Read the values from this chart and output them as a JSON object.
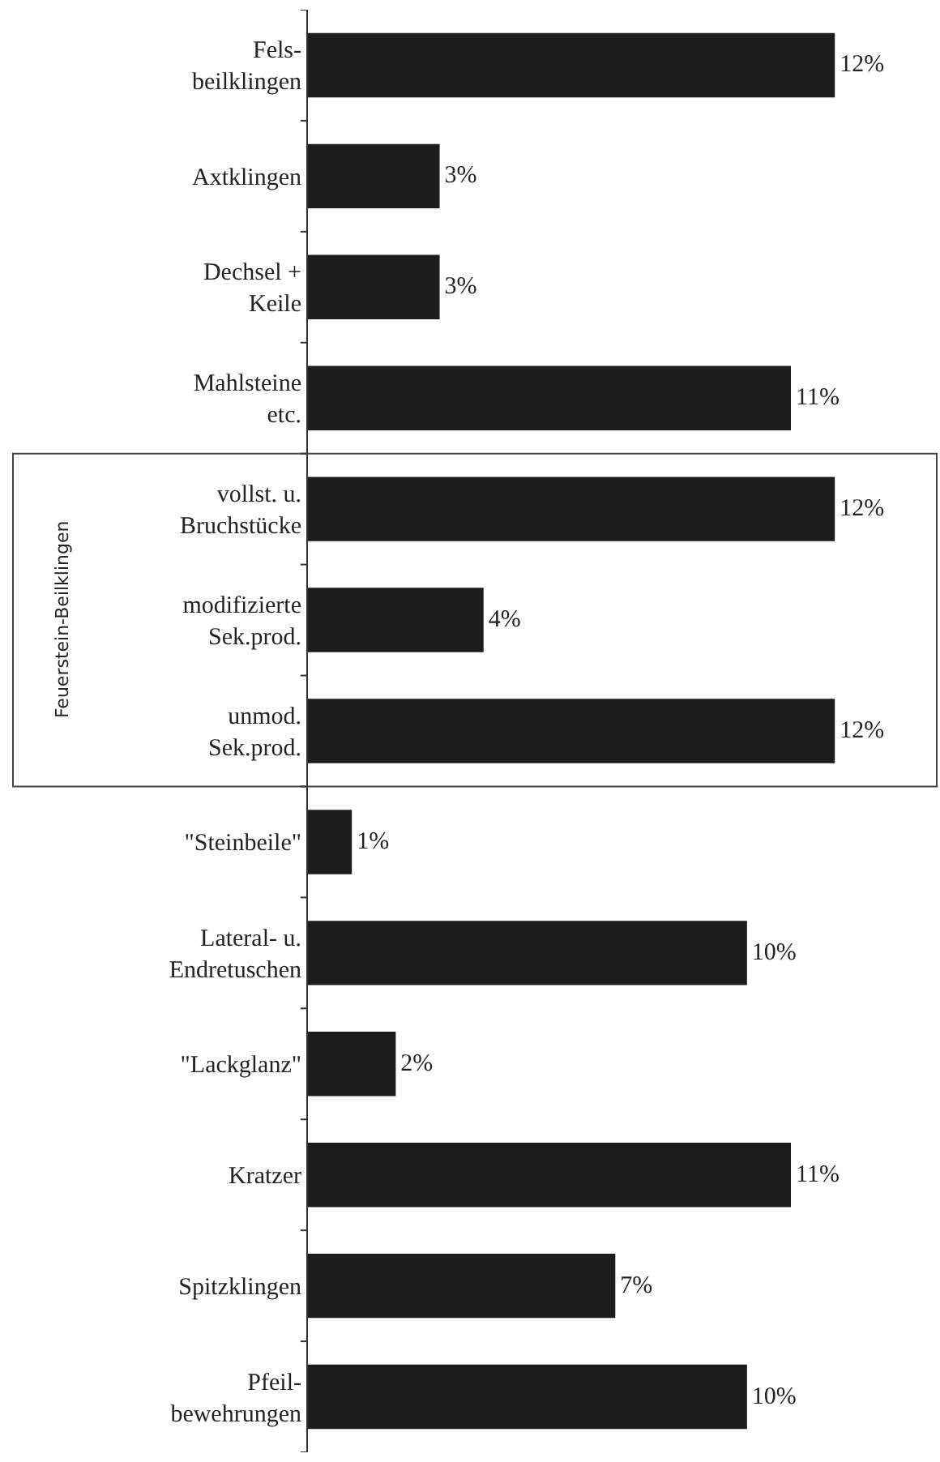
{
  "chart_data": {
    "type": "bar",
    "orientation": "horizontal",
    "categories": [
      "Fels-\nbeilklingen",
      "Axtklingen",
      "Dechsel +\nKeile",
      "Mahlsteine\netc.",
      "vollst. u.\nBruchstücke",
      "modifizierte\nSek.prod.",
      "unmod.\nSek.prod.",
      "\"Steinbeile\"",
      "Lateral- u.\nEndretuschen",
      "\"Lackglanz\"",
      "Kratzer",
      "Spitzklingen",
      "Pfeil-\nbewehrungen"
    ],
    "values": [
      12,
      3,
      3,
      11,
      12,
      4,
      12,
      1,
      10,
      2,
      11,
      7,
      10
    ],
    "value_labels": [
      "12%",
      "3%",
      "3%",
      "11%",
      "12%",
      "4%",
      "12%",
      "1%",
      "10%",
      "2%",
      "11%",
      "7%",
      "10%"
    ],
    "color": "#1c1c1c",
    "annotations": [
      "Feuerstein-Beilklingen"
    ]
  }
}
